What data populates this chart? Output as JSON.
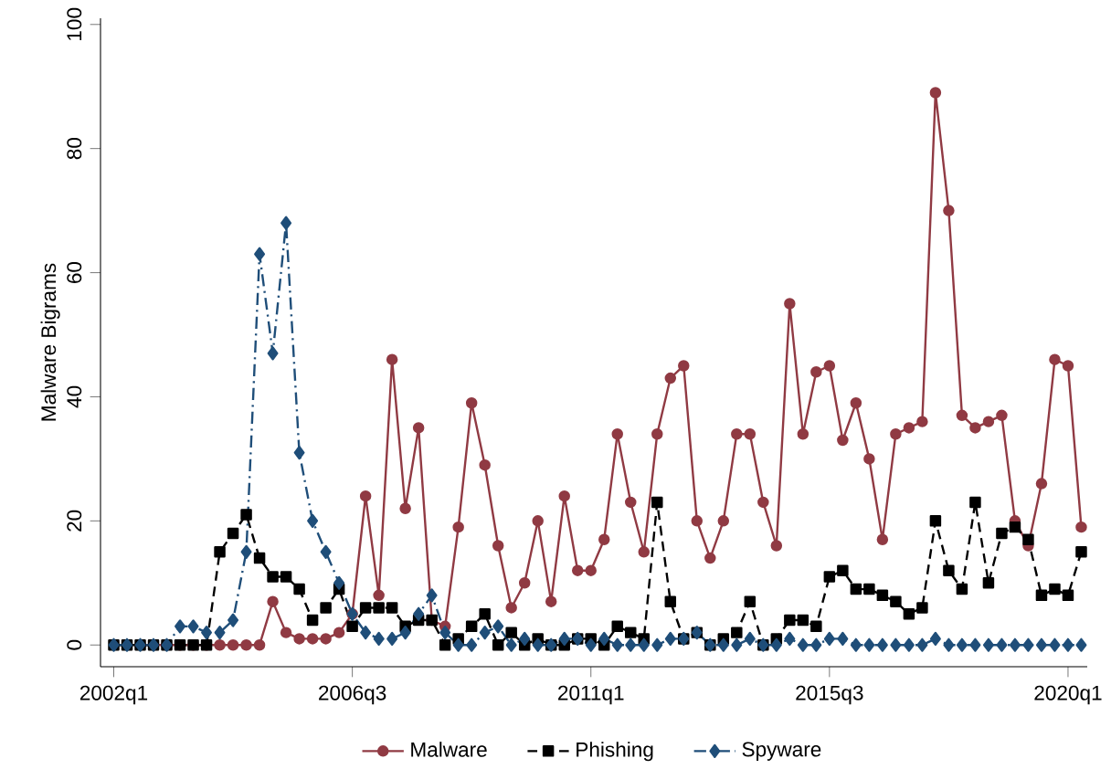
{
  "chart_data": {
    "type": "line",
    "ylabel": "Malware Bigrams",
    "categories": [
      "2002q1",
      null,
      null,
      null,
      null,
      null,
      null,
      null,
      null,
      null,
      null,
      null,
      null,
      null,
      null,
      null,
      null,
      null,
      "2006q3",
      null,
      null,
      null,
      null,
      null,
      null,
      null,
      null,
      null,
      null,
      null,
      null,
      null,
      null,
      null,
      null,
      null,
      "2011q1",
      null,
      null,
      null,
      null,
      null,
      null,
      null,
      null,
      null,
      null,
      null,
      null,
      null,
      null,
      null,
      null,
      null,
      "2015q3",
      null,
      null,
      null,
      null,
      null,
      null,
      null,
      null,
      null,
      null,
      null,
      null,
      null,
      null,
      null,
      null,
      null,
      "2020q1",
      null
    ],
    "series": [
      {
        "name": "Malware",
        "color": "#903a43",
        "marker": "circle",
        "line_style": "solid",
        "values": [
          null,
          null,
          0,
          0,
          0,
          0,
          0,
          0,
          0,
          0,
          0,
          0,
          7,
          2,
          1,
          1,
          1,
          2,
          5,
          24,
          8,
          46,
          22,
          35,
          4,
          3,
          19,
          39,
          29,
          16,
          6,
          10,
          20,
          7,
          24,
          12,
          12,
          17,
          34,
          23,
          15,
          34,
          43,
          45,
          20,
          14,
          20,
          34,
          34,
          23,
          16,
          55,
          34,
          44,
          45,
          33,
          39,
          30,
          17,
          34,
          35,
          36,
          89,
          70,
          37,
          35,
          36,
          37,
          20,
          16,
          26,
          46,
          45,
          19
        ]
      },
      {
        "name": "Phishing",
        "color": "#000000",
        "marker": "square",
        "line_style": "dashed",
        "values": [
          0,
          0,
          0,
          0,
          0,
          0,
          0,
          0,
          15,
          18,
          21,
          14,
          11,
          11,
          9,
          4,
          6,
          9,
          3,
          6,
          6,
          6,
          3,
          4,
          4,
          0,
          1,
          3,
          5,
          0,
          2,
          0,
          1,
          0,
          0,
          1,
          1,
          0,
          3,
          2,
          1,
          23,
          7,
          1,
          2,
          0,
          1,
          2,
          7,
          0,
          1,
          4,
          4,
          3,
          11,
          12,
          9,
          9,
          8,
          7,
          5,
          6,
          20,
          12,
          9,
          23,
          10,
          18,
          19,
          17,
          8,
          9,
          8,
          15
        ]
      },
      {
        "name": "Spyware",
        "color": "#1f4e79",
        "marker": "diamond",
        "line_style": "dashdot",
        "values": [
          0,
          0,
          0,
          0,
          0,
          3,
          3,
          2,
          2,
          4,
          15,
          63,
          47,
          68,
          31,
          20,
          15,
          10,
          5,
          2,
          1,
          1,
          2,
          5,
          8,
          2,
          0,
          0,
          2,
          3,
          0,
          1,
          0,
          0,
          1,
          1,
          0,
          1,
          0,
          0,
          0,
          0,
          1,
          1,
          2,
          0,
          0,
          0,
          1,
          0,
          0,
          1,
          0,
          0,
          1,
          1,
          0,
          0,
          0,
          0,
          0,
          0,
          1,
          0,
          0,
          0,
          0,
          0,
          0,
          0,
          0,
          0,
          0,
          0
        ]
      }
    ],
    "ylim": [
      -3.5,
      101
    ],
    "yticks": [
      0,
      20,
      40,
      60,
      80,
      100
    ],
    "grid": false,
    "legend": "bottom"
  }
}
